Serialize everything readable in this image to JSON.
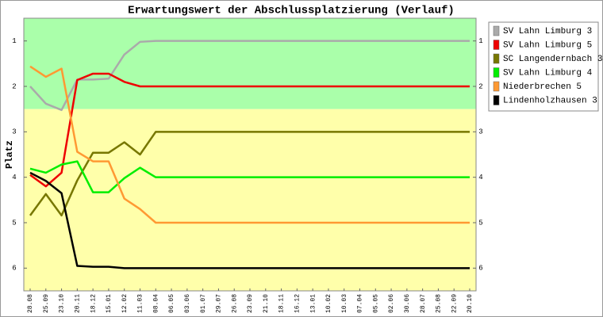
{
  "chart_data": {
    "type": "line",
    "title": "Erwartungswert der Abschlussplatzierung (Verlauf)",
    "y_label": "Platz",
    "categories": [
      "28.08",
      "25.09",
      "23.10",
      "20.11",
      "18.12",
      "15.01",
      "12.02",
      "11.03",
      "08.04",
      "06.05",
      "03.06",
      "01.07",
      "29.07",
      "26.08",
      "23.09",
      "21.10",
      "18.11",
      "16.12",
      "13.01",
      "10.02",
      "10.03",
      "07.04",
      "05.05",
      "02.06",
      "30.06",
      "28.07",
      "25.08",
      "22.09",
      "20.10"
    ],
    "ylim": [
      0.5,
      6.5
    ],
    "y_inverted": true,
    "yticks": [
      1,
      2,
      3,
      4,
      5,
      6
    ],
    "background_bands": [
      {
        "from": 0.5,
        "to": 2.5,
        "color": "#aaffaa"
      },
      {
        "from": 2.5,
        "to": 6.5,
        "color": "#ffffaa"
      }
    ],
    "legend_position": "right",
    "series": [
      {
        "name": "SV Lahn Limburg 3",
        "color": "#aaaaaa",
        "values": [
          2.0,
          2.38,
          2.52,
          1.85,
          1.85,
          1.83,
          1.3,
          1.02,
          1.0,
          1,
          1,
          1,
          1,
          1,
          1,
          1,
          1,
          1,
          1,
          1,
          1,
          1,
          1,
          1,
          1,
          1,
          1,
          1,
          1
        ]
      },
      {
        "name": "SV Lahn Limburg 5",
        "color": "#ee0000",
        "values": [
          3.95,
          4.2,
          3.9,
          1.86,
          1.72,
          1.72,
          1.9,
          2.0,
          2.0,
          2,
          2,
          2,
          2,
          2,
          2,
          2,
          2,
          2,
          2,
          2,
          2,
          2,
          2,
          2,
          2,
          2,
          2,
          2,
          2
        ]
      },
      {
        "name": "SC Langendernbach 3",
        "color": "#777700",
        "values": [
          4.84,
          4.37,
          4.84,
          4.07,
          3.46,
          3.46,
          3.23,
          3.5,
          3.0,
          3,
          3,
          3,
          3,
          3,
          3,
          3,
          3,
          3,
          3,
          3,
          3,
          3,
          3,
          3,
          3,
          3,
          3,
          3,
          3
        ]
      },
      {
        "name": "SV Lahn Limburg 4",
        "color": "#00ee00",
        "values": [
          3.81,
          3.9,
          3.72,
          3.65,
          4.33,
          4.33,
          4.02,
          3.79,
          4.0,
          4,
          4,
          4,
          4,
          4,
          4,
          4,
          4,
          4,
          4,
          4,
          4,
          4,
          4,
          4,
          4,
          4,
          4,
          4,
          4
        ]
      },
      {
        "name": "Niederbrechen 5",
        "color": "#ff9933",
        "values": [
          1.56,
          1.79,
          1.61,
          3.44,
          3.65,
          3.65,
          4.47,
          4.7,
          5.0,
          5,
          5,
          5,
          5,
          5,
          5,
          5,
          5,
          5,
          5,
          5,
          5,
          5,
          5,
          5,
          5,
          5,
          5,
          5,
          5
        ]
      },
      {
        "name": "Lindenholzhausen 3",
        "color": "#000000",
        "values": [
          3.9,
          4.08,
          4.35,
          5.95,
          5.97,
          5.97,
          6.0,
          6.0,
          6.0,
          6,
          6,
          6,
          6,
          6,
          6,
          6,
          6,
          6,
          6,
          6,
          6,
          6,
          6,
          6,
          6,
          6,
          6,
          6,
          6
        ]
      }
    ]
  }
}
